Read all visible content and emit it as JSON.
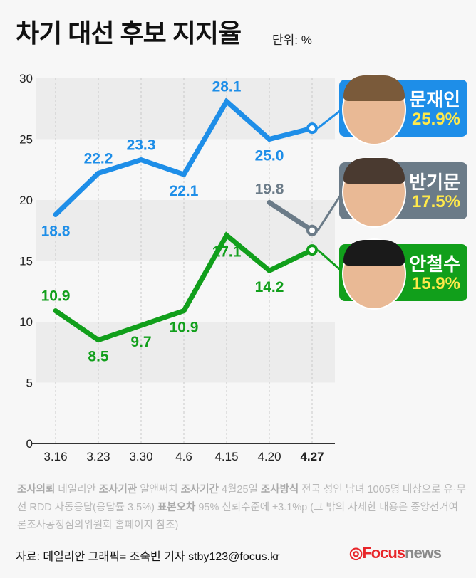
{
  "title": "차기 대선 후보 지지율",
  "unit": "단위: %",
  "chart_data": {
    "type": "line",
    "categories": [
      "3.16",
      "3.23",
      "3.30",
      "4.6",
      "4.15",
      "4.20",
      "4.27"
    ],
    "yticks": [
      0,
      5,
      10,
      15,
      20,
      25,
      30
    ],
    "ylim": [
      0,
      30
    ],
    "series": [
      {
        "name": "문재인",
        "color": "#1e8ee8",
        "values": [
          18.8,
          22.2,
          23.3,
          22.1,
          28.1,
          25.0,
          25.9
        ],
        "labels": [
          "18.8",
          "22.2",
          "23.3",
          "22.1",
          "28.1",
          "25.0",
          ""
        ]
      },
      {
        "name": "반기문",
        "color": "#6b7b88",
        "values": [
          null,
          null,
          null,
          null,
          null,
          19.8,
          17.5
        ],
        "labels": [
          "",
          "",
          "",
          "",
          "",
          "19.8",
          ""
        ]
      },
      {
        "name": "안철수",
        "color": "#119f1b",
        "values": [
          10.9,
          8.5,
          9.7,
          10.9,
          17.1,
          14.2,
          15.9
        ],
        "labels": [
          "10.9",
          "8.5",
          "9.7",
          "10.9",
          "17.1",
          "14.2",
          ""
        ]
      }
    ]
  },
  "callouts": [
    {
      "name": "문재인",
      "value": "25.9%",
      "color": "#1e8ee8",
      "hair": "#7a5a3a"
    },
    {
      "name": "반기문",
      "value": "17.5%",
      "color": "#6b7b88",
      "hair": "#4a3a30"
    },
    {
      "name": "안철수",
      "value": "15.9%",
      "color": "#119f1b",
      "hair": "#1a1a1a"
    }
  ],
  "note": {
    "k1": "조사의뢰",
    "v1": " 데일리안 ",
    "k2": "조사기관",
    "v2": " 알앤써치 ",
    "k3": "조사기간",
    "v3": " 4월25일 ",
    "k4": "조사방식",
    "v4": " 전국 성인 남녀 1005명 대상으로 유·무선 RDD 자동응답(응답률 3.5%)  ",
    "k5": "표본오차",
    "v5": " 95% 신뢰수준에 ±3.1%p (그 밖의 자세한 내용은 중앙선거여론조사공정심의위원회 홈페이지 참조)"
  },
  "source": "자료: 데일리안   그래픽= 조숙빈 기자 stby123@focus.kr",
  "logo": {
    "a": "Focus",
    "b": "news"
  }
}
